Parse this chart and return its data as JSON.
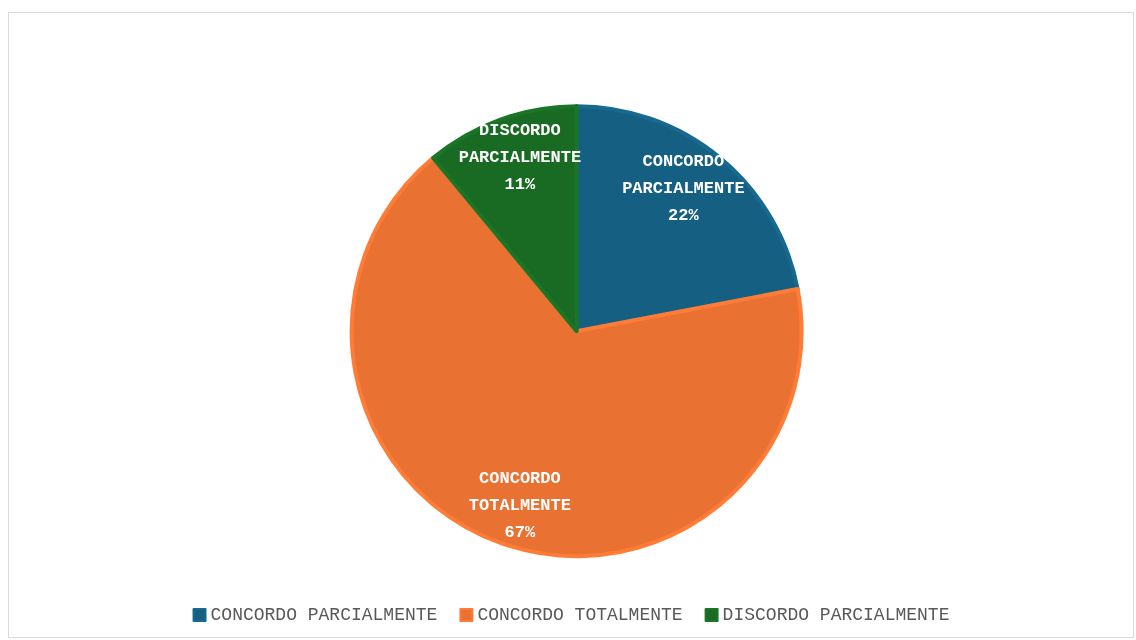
{
  "chart_data": {
    "type": "pie",
    "categories": [
      "CONCORDO PARCIALMENTE",
      "CONCORDO TOTALMENTE",
      "DISCORDO PARCIALMENTE"
    ],
    "values": [
      22,
      67,
      11
    ],
    "value_labels": [
      "22%",
      "67%",
      "11%"
    ],
    "colors": [
      "#156082",
      "#e97132",
      "#196b24"
    ],
    "legend": "bottom"
  }
}
